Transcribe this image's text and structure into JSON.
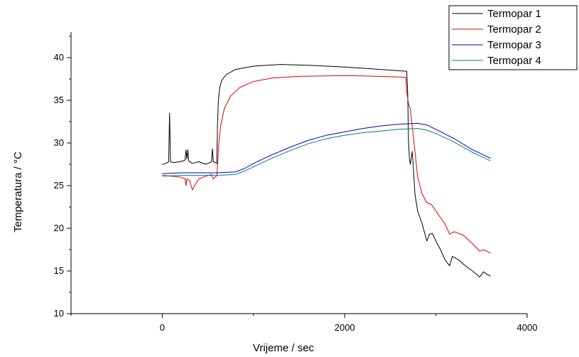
{
  "chart_data": {
    "type": "line",
    "title": "",
    "xlabel": "Vrijeme / sec",
    "ylabel": "Temperatura / °C",
    "xlim": [
      -1000,
      4000
    ],
    "ylim": [
      10,
      43
    ],
    "xticks": [
      0,
      2000,
      4000
    ],
    "yticks": [
      10,
      15,
      20,
      25,
      30,
      35,
      40
    ],
    "grid": false,
    "legend_position": "top-right",
    "series": [
      {
        "name": "Termopar 1",
        "color": "#000000",
        "points": [
          [
            0,
            27.5
          ],
          [
            40,
            27.6
          ],
          [
            70,
            27.8
          ],
          [
            80,
            33.5
          ],
          [
            90,
            27.8
          ],
          [
            120,
            27.7
          ],
          [
            200,
            27.8
          ],
          [
            250,
            28.0
          ],
          [
            260,
            29.2
          ],
          [
            270,
            28.1
          ],
          [
            280,
            29.2
          ],
          [
            290,
            27.9
          ],
          [
            330,
            27.6
          ],
          [
            400,
            27.8
          ],
          [
            480,
            27.5
          ],
          [
            540,
            27.8
          ],
          [
            550,
            29.3
          ],
          [
            560,
            27.8
          ],
          [
            580,
            27.7
          ],
          [
            598,
            27.6
          ],
          [
            605,
            32.0
          ],
          [
            615,
            35.0
          ],
          [
            630,
            36.5
          ],
          [
            650,
            37.3
          ],
          [
            700,
            38.0
          ],
          [
            800,
            38.6
          ],
          [
            1000,
            39.0
          ],
          [
            1300,
            39.2
          ],
          [
            1600,
            39.1
          ],
          [
            2000,
            38.9
          ],
          [
            2400,
            38.6
          ],
          [
            2680,
            38.4
          ],
          [
            2690,
            36.0
          ],
          [
            2700,
            30.0
          ],
          [
            2710,
            28.0
          ],
          [
            2720,
            27.5
          ],
          [
            2740,
            29.0
          ],
          [
            2750,
            27.5
          ],
          [
            2770,
            24.0
          ],
          [
            2800,
            22.0
          ],
          [
            2850,
            20.5
          ],
          [
            2900,
            18.5
          ],
          [
            2930,
            19.3
          ],
          [
            2960,
            19.4
          ],
          [
            3000,
            18.5
          ],
          [
            3050,
            17.5
          ],
          [
            3100,
            16.3
          ],
          [
            3150,
            15.6
          ],
          [
            3180,
            16.7
          ],
          [
            3250,
            16.3
          ],
          [
            3300,
            15.8
          ],
          [
            3400,
            15.0
          ],
          [
            3480,
            14.3
          ],
          [
            3520,
            14.9
          ],
          [
            3560,
            14.6
          ],
          [
            3600,
            14.4
          ]
        ]
      },
      {
        "name": "Termopar 2",
        "color": "#e00000",
        "points": [
          [
            0,
            26.2
          ],
          [
            100,
            26.1
          ],
          [
            200,
            26.0
          ],
          [
            250,
            25.8
          ],
          [
            260,
            25.0
          ],
          [
            270,
            25.8
          ],
          [
            300,
            25.6
          ],
          [
            330,
            24.5
          ],
          [
            350,
            24.9
          ],
          [
            400,
            25.8
          ],
          [
            480,
            26.1
          ],
          [
            540,
            26.3
          ],
          [
            560,
            25.8
          ],
          [
            580,
            26.0
          ],
          [
            600,
            26.2
          ],
          [
            610,
            28.0
          ],
          [
            620,
            30.0
          ],
          [
            640,
            32.0
          ],
          [
            680,
            34.0
          ],
          [
            750,
            35.5
          ],
          [
            850,
            36.5
          ],
          [
            1000,
            37.2
          ],
          [
            1200,
            37.6
          ],
          [
            1500,
            37.8
          ],
          [
            2000,
            37.9
          ],
          [
            2400,
            37.8
          ],
          [
            2670,
            37.7
          ],
          [
            2680,
            36.0
          ],
          [
            2700,
            34.5
          ],
          [
            2720,
            34.0
          ],
          [
            2740,
            32.0
          ],
          [
            2760,
            30.0
          ],
          [
            2800,
            26.0
          ],
          [
            2850,
            24.0
          ],
          [
            2900,
            23.0
          ],
          [
            2950,
            22.8
          ],
          [
            3000,
            22.0
          ],
          [
            3100,
            20.5
          ],
          [
            3150,
            19.3
          ],
          [
            3200,
            19.6
          ],
          [
            3300,
            19.2
          ],
          [
            3400,
            18.2
          ],
          [
            3480,
            17.3
          ],
          [
            3520,
            17.5
          ],
          [
            3600,
            17.1
          ]
        ]
      },
      {
        "name": "Termopar 3",
        "color": "#0000c8",
        "points": [
          [
            0,
            26.4
          ],
          [
            200,
            26.5
          ],
          [
            400,
            26.5
          ],
          [
            600,
            26.5
          ],
          [
            800,
            26.6
          ],
          [
            900,
            27.0
          ],
          [
            1000,
            27.6
          ],
          [
            1200,
            28.6
          ],
          [
            1400,
            29.5
          ],
          [
            1600,
            30.3
          ],
          [
            1800,
            30.9
          ],
          [
            2000,
            31.3
          ],
          [
            2200,
            31.7
          ],
          [
            2400,
            32.0
          ],
          [
            2600,
            32.2
          ],
          [
            2800,
            32.3
          ],
          [
            2900,
            32.1
          ],
          [
            3000,
            31.6
          ],
          [
            3200,
            30.5
          ],
          [
            3400,
            29.2
          ],
          [
            3600,
            28.2
          ]
        ]
      },
      {
        "name": "Termopar 4",
        "color": "#008080",
        "points": [
          [
            0,
            26.1
          ],
          [
            200,
            26.2
          ],
          [
            400,
            26.2
          ],
          [
            600,
            26.2
          ],
          [
            800,
            26.3
          ],
          [
            900,
            26.7
          ],
          [
            1000,
            27.2
          ],
          [
            1200,
            28.2
          ],
          [
            1400,
            29.1
          ],
          [
            1600,
            29.9
          ],
          [
            1800,
            30.5
          ],
          [
            2000,
            30.9
          ],
          [
            2200,
            31.2
          ],
          [
            2400,
            31.4
          ],
          [
            2600,
            31.6
          ],
          [
            2800,
            31.7
          ],
          [
            2900,
            31.5
          ],
          [
            3000,
            31.1
          ],
          [
            3200,
            30.1
          ],
          [
            3400,
            28.9
          ],
          [
            3600,
            27.9
          ]
        ]
      }
    ]
  }
}
